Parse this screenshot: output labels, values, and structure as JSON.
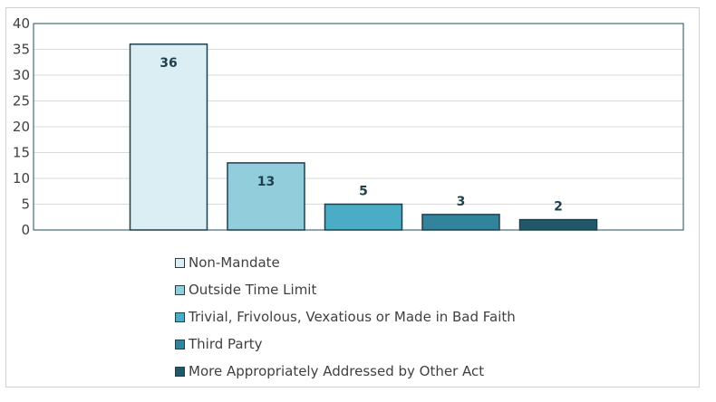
{
  "chart_data": {
    "type": "bar",
    "categories": [
      "Non-Mandate",
      "Outside Time Limit",
      "Trivial, Frivolous, Vexatious or Made in Bad Faith",
      "Third Party",
      "More Appropriately Addressed by Other Act"
    ],
    "values": [
      36,
      13,
      5,
      3,
      2
    ],
    "data_labels": [
      "36",
      "13",
      "5",
      "3",
      "2"
    ],
    "colors": [
      "#dbeef4",
      "#92cddc",
      "#4bacc6",
      "#31849b",
      "#215868"
    ],
    "title": "",
    "xlabel": "",
    "ylabel": "",
    "ylim": [
      0,
      40
    ],
    "yticks": [
      0,
      5,
      10,
      15,
      20,
      25,
      30,
      35,
      40
    ],
    "ytick_labels": [
      "0",
      "5",
      "10",
      "15",
      "20",
      "25",
      "30",
      "35",
      "40"
    ],
    "grid": true,
    "legend": "bottom",
    "legend_entries": [
      "Non-Mandate",
      "Outside Time Limit",
      "Trivial, Frivolous, Vexatious or Made in Bad Faith",
      "Third Party",
      "More Appropriately Addressed by Other Act"
    ]
  }
}
